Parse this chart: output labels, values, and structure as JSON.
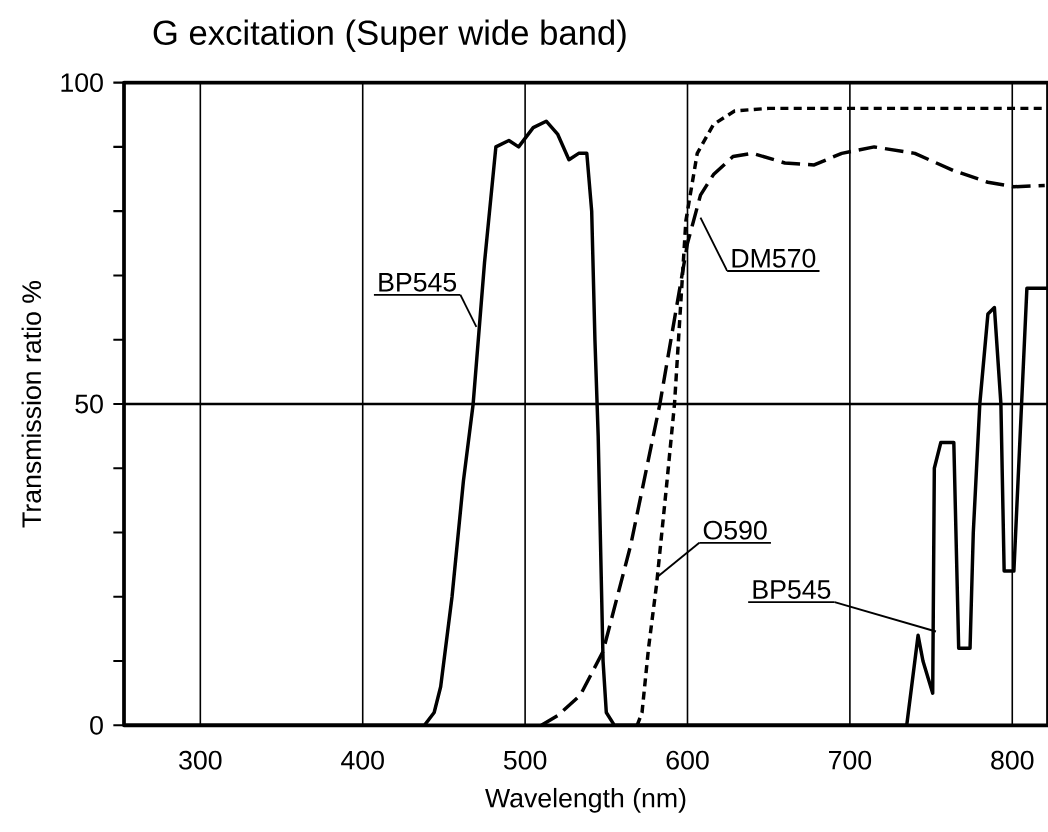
{
  "chart_data": {
    "type": "line",
    "title": "G excitation (Super wide band)",
    "xlabel": "Wavelength (nm)",
    "ylabel": "Transmission ratio %",
    "xlim": [
      253,
      822
    ],
    "ylim": [
      0,
      100
    ],
    "xticks": [
      300,
      400,
      500,
      600,
      700,
      800
    ],
    "yticks": [
      0,
      {
        "value": 10,
        "label": null
      },
      {
        "value": 20,
        "label": null
      },
      {
        "value": 30,
        "label": null
      },
      {
        "value": 40,
        "label": null
      },
      50,
      {
        "value": 60,
        "label": null
      },
      {
        "value": 70,
        "label": null
      },
      {
        "value": 80,
        "label": null
      },
      {
        "value": 90,
        "label": null
      },
      100
    ],
    "grid": "x",
    "ref_lines": [
      {
        "axis": "y",
        "value": 50,
        "color": "#000000"
      }
    ],
    "series": [
      {
        "color": "#000000",
        "line_style": "solid",
        "x": [
          253,
          438,
          444,
          448,
          455,
          462,
          468,
          475,
          482,
          490,
          496,
          505,
          513,
          520,
          527,
          533,
          538,
          541,
          543,
          545,
          548,
          550,
          555,
          735,
          738,
          742,
          745,
          751,
          752,
          756,
          764,
          767,
          774,
          776,
          780,
          785,
          789,
          793,
          795,
          801,
          809,
          822
        ],
        "values": [
          0,
          0,
          2,
          6,
          20,
          38,
          50,
          72,
          90,
          91,
          90,
          93,
          94,
          92,
          88,
          89,
          89,
          80,
          60,
          45,
          10,
          2,
          0,
          0,
          6,
          14,
          10,
          5,
          40,
          44,
          44,
          12,
          12,
          30,
          50,
          64,
          65,
          50,
          24,
          24,
          68,
          68
        ]
      },
      {
        "color": "#000000",
        "line_style": "dashed",
        "x": [
          510,
          520,
          534,
          548,
          565,
          583,
          600,
          608,
          616,
          628,
          640,
          660,
          678,
          695,
          715,
          740,
          764,
          785,
          801,
          820
        ],
        "values": [
          0,
          1.5,
          4.7,
          11.5,
          28,
          50,
          75,
          82.5,
          85.7,
          88.5,
          89,
          87.5,
          87.2,
          89,
          90,
          89,
          86.3,
          84.5,
          83.8,
          84
        ]
      },
      {
        "color": "#000000",
        "line_style": "dashed",
        "x": [
          569,
          572,
          576,
          581,
          587,
          592,
          599,
          606,
          616,
          629,
          650,
          700,
          750,
          800,
          820
        ],
        "values": [
          0,
          2,
          12,
          22,
          37,
          50,
          78.5,
          89,
          93.5,
          95.6,
          96,
          96,
          96,
          96,
          96
        ]
      }
    ],
    "annotations": [
      {
        "text": "BP545",
        "x": 470,
        "y": 62
      },
      {
        "text": "DM570",
        "x": 608,
        "y": 79
      },
      {
        "text": "O590",
        "x": 581,
        "y": 23
      },
      {
        "text": "BP545",
        "x": 753,
        "y": 14.6
      }
    ]
  }
}
